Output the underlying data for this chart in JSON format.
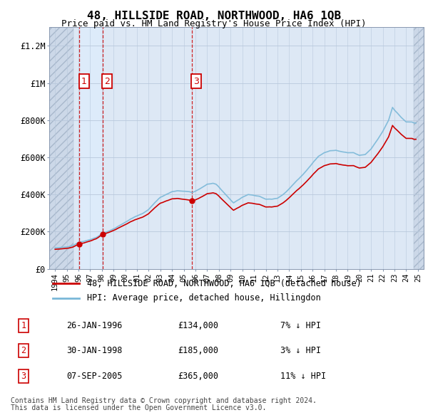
{
  "title": "48, HILLSIDE ROAD, NORTHWOOD, HA6 1QB",
  "subtitle": "Price paid vs. HM Land Registry's House Price Index (HPI)",
  "ylabel_ticks": [
    "£0",
    "£200K",
    "£400K",
    "£600K",
    "£800K",
    "£1M",
    "£1.2M"
  ],
  "ytick_values": [
    0,
    200000,
    400000,
    600000,
    800000,
    1000000,
    1200000
  ],
  "ylim": [
    0,
    1300000
  ],
  "xlim_start": 1993.5,
  "xlim_end": 2025.5,
  "transactions": [
    {
      "num": 1,
      "date": "26-JAN-1996",
      "price": 134000,
      "x": 1996.07,
      "pct": "7%",
      "dir": "↓"
    },
    {
      "num": 2,
      "date": "30-JAN-1998",
      "price": 185000,
      "x": 1998.07,
      "pct": "3%",
      "dir": "↓"
    },
    {
      "num": 3,
      "date": "07-SEP-2005",
      "price": 365000,
      "x": 2005.69,
      "pct": "11%",
      "dir": "↓"
    }
  ],
  "legend_line1": "48, HILLSIDE ROAD, NORTHWOOD, HA6 1QB (detached house)",
  "legend_line2": "HPI: Average price, detached house, Hillingdon",
  "footer1": "Contains HM Land Registry data © Crown copyright and database right 2024.",
  "footer2": "This data is licensed under the Open Government Licence v3.0.",
  "hpi_color": "#7ab8d8",
  "price_color": "#cc0000",
  "background_chart": "#dde8f5",
  "background_hatch": "#ccd8e8",
  "grid_color": "#b8c8dc",
  "label_color": "#cc0000",
  "hatch_right_start": 2024.67
}
